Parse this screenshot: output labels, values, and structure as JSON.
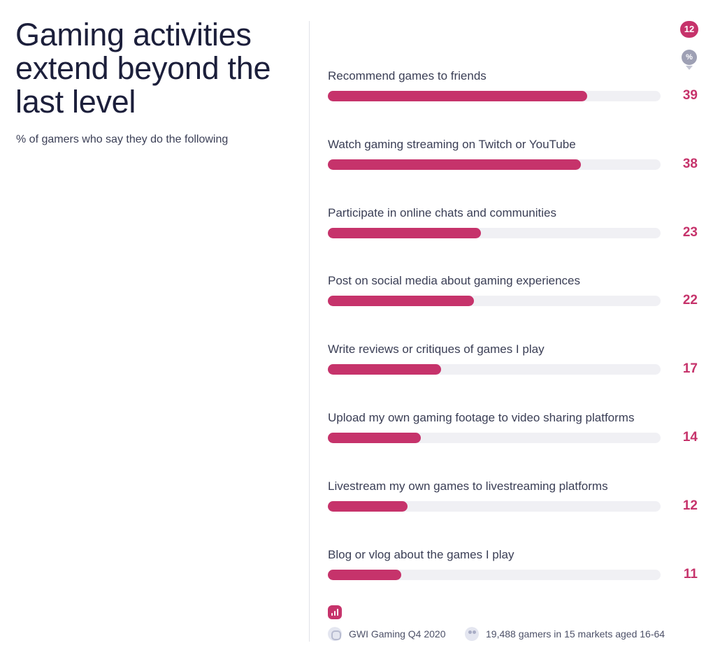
{
  "header": {
    "title": "Gaming activities extend beyond the last level",
    "subtitle": "% of gamers who say they do the following"
  },
  "badges": {
    "count": "12",
    "unit": "%"
  },
  "colors": {
    "bar": "#c6336b",
    "track": "#f0f0f4",
    "value": "#c6336b"
  },
  "icons": {
    "chart": "bar-chart-icon",
    "source": "source-icon",
    "sample": "people-icon"
  },
  "footer": {
    "source": "GWI Gaming Q4 2020",
    "sample": "19,488 gamers in 15 markets aged 16-64"
  },
  "chart_data": {
    "type": "bar",
    "orientation": "horizontal",
    "categories": [
      "Recommend games to friends",
      "Watch gaming streaming on Twitch or YouTube",
      "Participate in online chats and communities",
      "Post on social media about gaming experiences",
      "Write reviews or critiques of games I play",
      "Upload my own gaming footage to video sharing platforms",
      "Livestream my own games to livestreaming platforms",
      "Blog or vlog about the games I play"
    ],
    "values": [
      39,
      38,
      23,
      22,
      17,
      14,
      12,
      11
    ],
    "xlim": [
      0,
      50
    ],
    "unit": "%"
  }
}
